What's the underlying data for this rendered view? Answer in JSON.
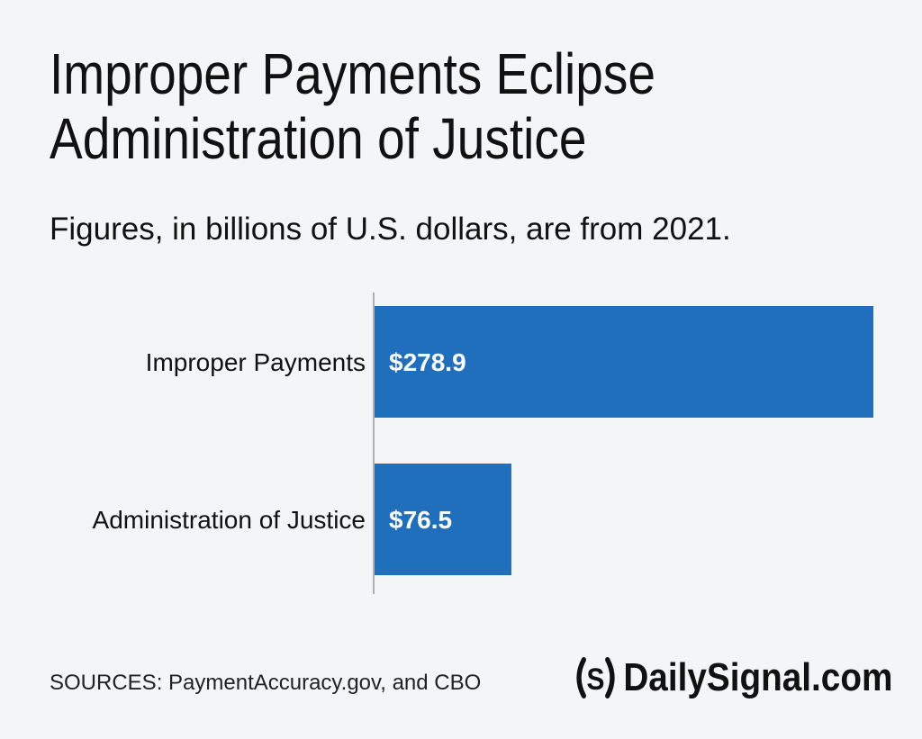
{
  "header": {
    "title_lines": [
      "Improper Payments Eclipse",
      "Administration of Justice"
    ],
    "subtitle": "Figures, in billions of U.S. dollars, are from 2021."
  },
  "footer": {
    "sources": "SOURCES: PaymentAccuracy.gov, and CBO",
    "brand": "DailySignal.com",
    "brand_mark": "(S)",
    "brand_mark_icon": "daily-signal-s-logo-icon"
  },
  "colors": {
    "bar": "#1f6fbc",
    "axis": "#9a9a9a",
    "background": "#f4f5f7",
    "label_text": "#111111",
    "value_text": "#ffffff"
  },
  "chart_data": {
    "type": "bar",
    "orientation": "horizontal",
    "categories": [
      "Improper Payments",
      "Administration of Justice"
    ],
    "values": [
      278.9,
      76.5
    ],
    "value_labels": [
      "$278.9",
      "$76.5"
    ],
    "title": "Improper Payments Eclipse Administration of Justice",
    "subtitle": "Figures, in billions of U.S. dollars, are from 2021.",
    "xlim": [
      0,
      278.9
    ],
    "grid": false
  }
}
